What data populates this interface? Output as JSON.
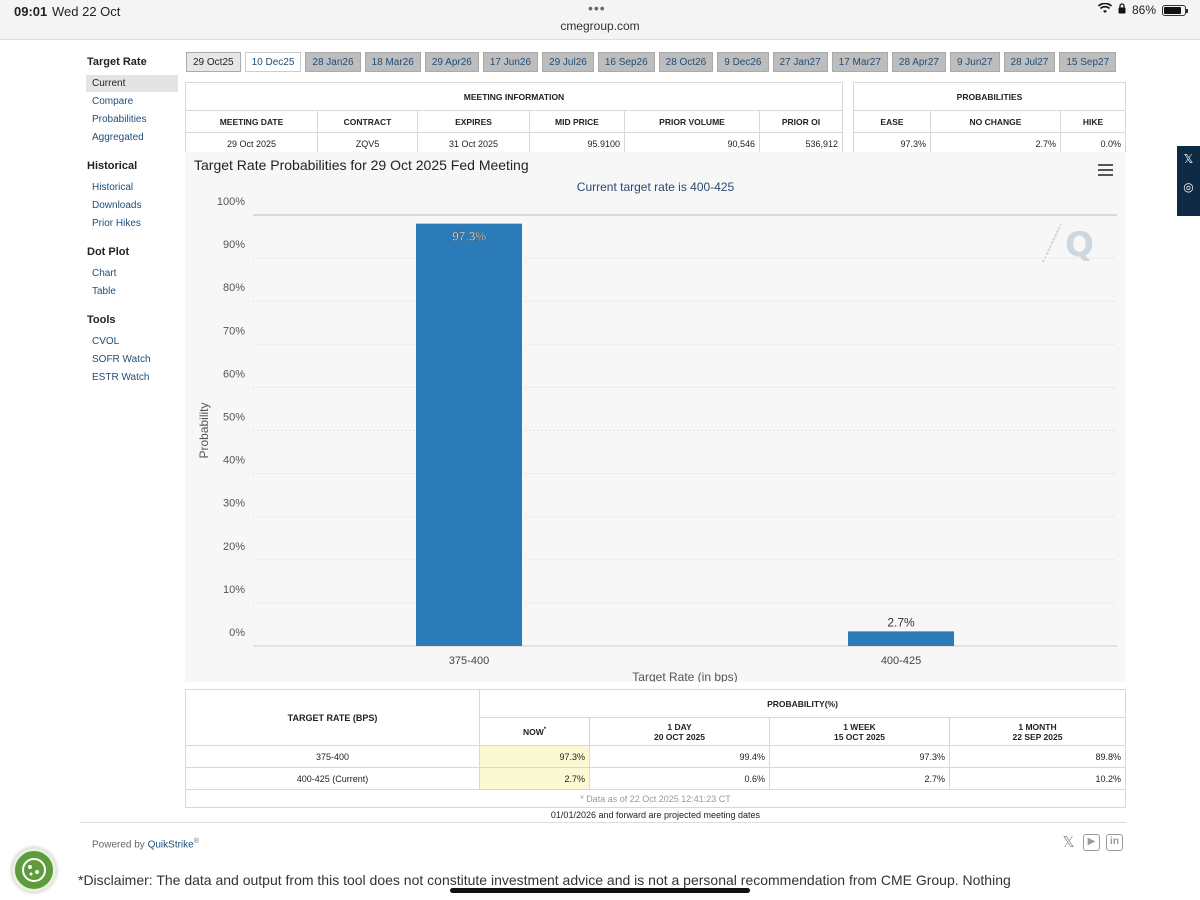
{
  "status": {
    "time": "09:01",
    "date": "Wed 22 Oct",
    "url": "cmegroup.com",
    "battery": "86%",
    "battery_level": 0.86
  },
  "sidebar": {
    "sections": [
      {
        "title": "Target Rate",
        "items": [
          "Current",
          "Compare",
          "Probabilities",
          "Aggregated"
        ]
      },
      {
        "title": "Historical",
        "items": [
          "Historical",
          "Downloads",
          "Prior Hikes"
        ]
      },
      {
        "title": "Dot Plot",
        "items": [
          "Chart",
          "Table"
        ]
      },
      {
        "title": "Tools",
        "items": [
          "CVOL",
          "SOFR Watch",
          "ESTR Watch"
        ]
      }
    ]
  },
  "tabs": [
    "29 Oct25",
    "10 Dec25",
    "28 Jan26",
    "18 Mar26",
    "29 Apr26",
    "17 Jun26",
    "29 Jul26",
    "16 Sep26",
    "28 Oct26",
    "9 Dec26",
    "27 Jan27",
    "17 Mar27",
    "28 Apr27",
    "9 Jun27",
    "28 Jul27",
    "15 Sep27"
  ],
  "meeting_info": {
    "header": "MEETING INFORMATION",
    "columns": [
      "MEETING DATE",
      "CONTRACT",
      "EXPIRES",
      "MID PRICE",
      "PRIOR VOLUME",
      "PRIOR OI"
    ],
    "row": [
      "29 Oct 2025",
      "ZQV5",
      "31 Oct 2025",
      "95.9100",
      "90,546",
      "536,912"
    ]
  },
  "probabilities": {
    "header": "PROBABILITIES",
    "columns": [
      "EASE",
      "NO CHANGE",
      "HIKE"
    ],
    "row": [
      "97.3%",
      "2.7%",
      "0.0%"
    ]
  },
  "chart": {
    "title": "Target Rate Probabilities for 29 Oct 2025 Fed Meeting",
    "subtitle": "Current target rate is 400-425"
  },
  "chart_data": {
    "type": "bar",
    "categories": [
      "375-400",
      "400-425"
    ],
    "values": [
      97.3,
      2.7
    ],
    "data_labels": [
      "97.3%",
      "2.7%"
    ],
    "xlabel": "Target Rate (in bps)",
    "ylabel": "Probability",
    "ylim": [
      0,
      100
    ],
    "yticks": [
      "0%",
      "10%",
      "20%",
      "30%",
      "40%",
      "50%",
      "60%",
      "70%",
      "80%",
      "90%",
      "100%"
    ],
    "color": "#2b7bb9"
  },
  "prob_table": {
    "rate_header": "TARGET RATE (BPS)",
    "prob_header": "PROBABILITY(%)",
    "columns": [
      {
        "l1": "NOW",
        "sup": "*",
        "l2": ""
      },
      {
        "l1": "1 DAY",
        "l2": "20 OCT 2025"
      },
      {
        "l1": "1 WEEK",
        "l2": "15 OCT 2025"
      },
      {
        "l1": "1 MONTH",
        "l2": "22 SEP 2025"
      }
    ],
    "rows": [
      {
        "rate": "375-400",
        "vals": [
          "97.3%",
          "99.4%",
          "97.3%",
          "89.8%"
        ]
      },
      {
        "rate": "400-425 (Current)",
        "vals": [
          "2.7%",
          "0.6%",
          "2.7%",
          "10.2%"
        ]
      }
    ],
    "asof": "* Data as of 22 Oct 2025 12:41:23 CT",
    "projected": "01/01/2026 and forward are projected meeting dates"
  },
  "footer": {
    "powered": "Powered by",
    "brand": "QuikStrike",
    "reg": "®",
    "disclaimer": "*Disclaimer: The data and output from this tool does not constitute investment advice and is not a personal recommendation from CME Group.  Nothing"
  }
}
